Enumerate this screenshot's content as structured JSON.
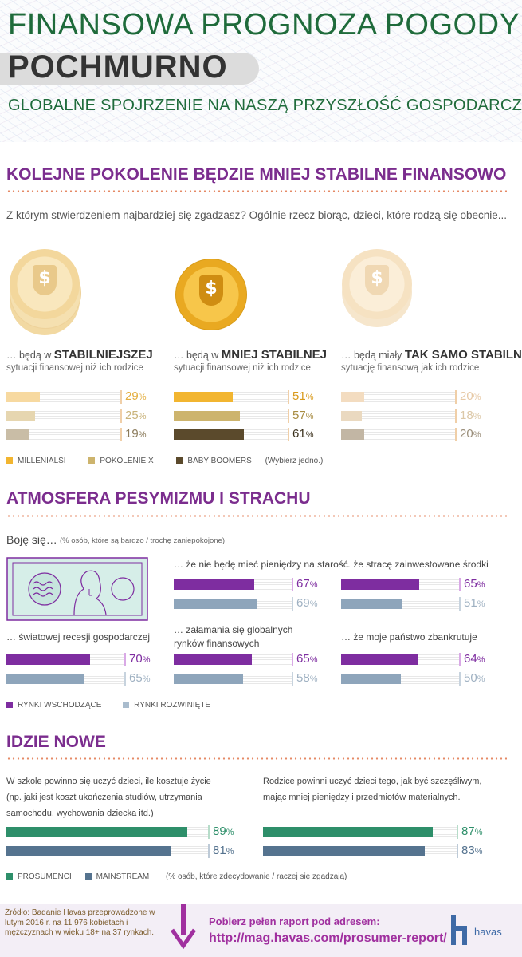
{
  "header": {
    "title": "FINANSOWA PROGNOZA POGODY",
    "subtitle": "POCHMURNO",
    "tagline": "GLOBALNE SPOJRZENIE NA NASZĄ PRZYSZŁOŚĆ GOSPODARCZĄ"
  },
  "section1": {
    "title": "KOLEJNE POKOLENIE BĘDZIE MNIEJ STABILNE FINANSOWO",
    "question": "Z którym stwierdzeniem najbardziej się zgadzasz? Ogólnie rzecz biorąc, dzieci, które rodzą się obecnie...",
    "options": [
      {
        "prefix": "… będą w ",
        "bold": "STABILNIEJSZEJ",
        "sub": "sytuacji finansowej niż ich rodzice"
      },
      {
        "prefix": "… będą w ",
        "bold": "MNIEJ STABILNEJ",
        "sub": "sytuacji finansowej niż ich rodzice"
      },
      {
        "prefix": "… będą miały ",
        "bold": "TAK SAMO STABILNĄ",
        "sub": "sytuację finansową jak ich rodzice"
      }
    ],
    "legend": [
      "MILLENIALSI",
      "POKOLENIE X",
      "BABY BOOMERS"
    ],
    "legend_note": "(Wybierz jedno.)",
    "coin_icon": "$",
    "colors": {
      "millenials": "#f2b530",
      "genx": "#cdb46d",
      "boomers": "#5b4a2c"
    }
  },
  "section2": {
    "title": "ATMOSFERA PESYMIZMU I STRACHU",
    "lead": "Boję się…",
    "note": "(% osób, które są bardzo / trochę zaniepokojone)",
    "labels": [
      "… że nie będę mieć pieniędzy na starość",
      "… że stracę zainwestowane środki",
      "… światowej recesji gospodarczej",
      "… załamania się globalnych rynków finansowych",
      "… że moje państwo zbankrutuje"
    ],
    "legend": [
      "RYNKI WSCHODZĄCE",
      "RYNKI ROZWINIĘTE"
    ],
    "colors": {
      "emerging": "#7e2da0",
      "developed": "#8ea5bb"
    }
  },
  "section3": {
    "title": "IDZIE NOWE",
    "left_label": "W szkole powinno się uczyć dzieci, ile kosztuje życie",
    "left_sub": "(np. jaki jest koszt ukończenia studiów, utrzymania samochodu, wychowania dziecka itd.)",
    "right_label": "Rodzice powinni uczyć dzieci tego, jak być szczęśliwym, mając mniej pieniędzy i przedmiotów materialnych.",
    "legend": [
      "PROSUMENCI",
      "MAINSTREAM"
    ],
    "note": "(% osób, które zdecydowanie / raczej się zgadzają)",
    "colors": {
      "prosumers": "#2e8f6a",
      "mainstream": "#55738f"
    }
  },
  "footer": {
    "source": "Źródło: Badanie Havas przeprowadzone w lutym 2016 r. na 11 976 kobietach i mężczyznach w wieku 18+ na 37 rynkach.",
    "cta": "Pobierz pełen raport pod adresem:",
    "url": "http://mag.havas.com/prosumer-report/",
    "logo": "havas"
  },
  "chart_data": [
    {
      "type": "bar",
      "title": "KOLEJNE POKOLENIE BĘDZIE MNIEJ STABILNE FINANSOWO",
      "categories": [
        "STABILNIEJSZEJ",
        "MNIEJ STABILNEJ",
        "TAK SAMO STABILNĄ"
      ],
      "series": [
        {
          "name": "MILLENIALSI",
          "values": [
            29,
            51,
            20
          ]
        },
        {
          "name": "POKOLENIE X",
          "values": [
            25,
            57,
            18
          ]
        },
        {
          "name": "BABY BOOMERS",
          "values": [
            19,
            61,
            20
          ]
        }
      ],
      "unit": "%",
      "ylim": [
        0,
        100
      ]
    },
    {
      "type": "bar",
      "title": "ATMOSFERA PESYMIZMU I STRACHU",
      "categories": [
        "brak pieniędzy na starość",
        "utrata zainwestowanych środków",
        "światowa recesja",
        "załamanie rynków finansowych",
        "bankructwo państwa"
      ],
      "series": [
        {
          "name": "RYNKI WSCHODZĄCE",
          "values": [
            67,
            65,
            70,
            65,
            64
          ]
        },
        {
          "name": "RYNKI ROZWINIĘTE",
          "values": [
            69,
            51,
            65,
            58,
            50
          ]
        }
      ],
      "unit": "%",
      "ylim": [
        0,
        100
      ]
    },
    {
      "type": "bar",
      "title": "IDZIE NOWE",
      "categories": [
        "koszt życia w szkole",
        "szczęście bez dóbr materialnych"
      ],
      "series": [
        {
          "name": "PROSUMENCI",
          "values": [
            89,
            87
          ]
        },
        {
          "name": "MAINSTREAM",
          "values": [
            81,
            83
          ]
        }
      ],
      "unit": "%",
      "ylim": [
        0,
        100
      ]
    }
  ]
}
